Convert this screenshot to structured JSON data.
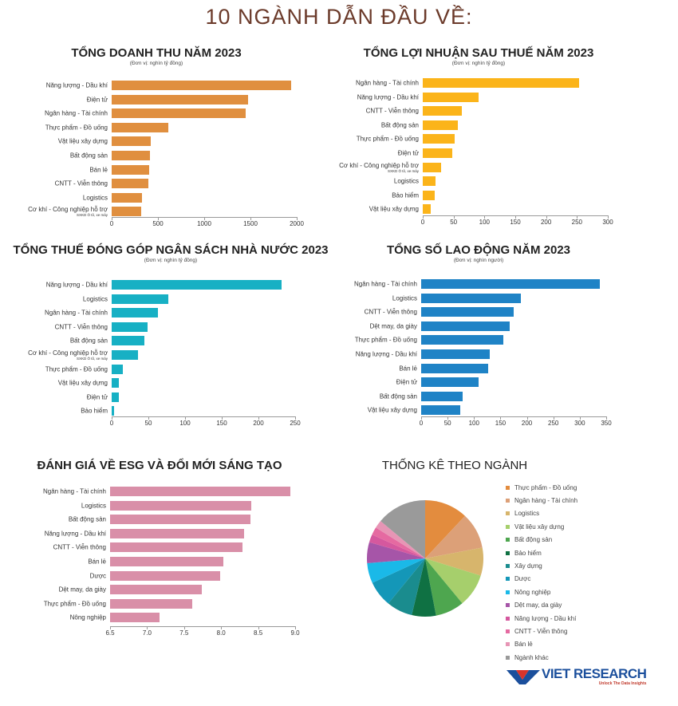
{
  "main_title": "10 NGÀNH DẪN ĐẦU VỀ:",
  "chart_data": [
    {
      "type": "bar",
      "orientation": "horizontal",
      "title": "TỔNG DOANH THU NĂM 2023",
      "unit": "(Đơn vị: nghìn tỷ đồng)",
      "color": "#e08f3f",
      "categories": [
        "Năng lượng - Dầu khí",
        "Điện tử",
        "Ngân hàng - Tài chính",
        "Thực phẩm - Đồ uống",
        "Vật liệu xây dựng",
        "Bất động sản",
        "Bán lẻ",
        "CNTT - Viễn thông",
        "Logistics",
        "Cơ khí - Công nghiệp hỗ trợ"
      ],
      "category_notes": {
        "9": "SXKD Ô tô, xe máy"
      },
      "values": [
        1940,
        1470,
        1445,
        610,
        420,
        410,
        405,
        395,
        330,
        320
      ],
      "xlim": [
        0,
        2000
      ],
      "xticks": [
        "0",
        "500",
        "1000",
        "1500",
        "2000"
      ]
    },
    {
      "type": "bar",
      "orientation": "horizontal",
      "title": "TỔNG LỢI NHUẬN SAU THUẾ NĂM 2023",
      "unit": "(Đơn vị: nghìn tỷ đồng)",
      "color": "#fbb41a",
      "categories": [
        "Ngân hàng - Tài chính",
        "Năng lượng - Dầu khí",
        "CNTT - Viễn thông",
        "Bất động sản",
        "Thực phẩm - Đồ uống",
        "Điện tử",
        "Cơ khí - Công nghiệp hỗ trợ",
        "Logistics",
        "Bảo hiểm",
        "Vật liệu xây dựng"
      ],
      "category_notes": {
        "6": "SXKD Ô tô, xe máy"
      },
      "values": [
        253,
        91,
        63,
        57,
        52,
        48,
        30,
        21,
        19,
        13
      ],
      "xlim": [
        0,
        300
      ],
      "xticks": [
        "0",
        "50",
        "100",
        "150",
        "200",
        "250",
        "300"
      ]
    },
    {
      "type": "bar",
      "orientation": "horizontal",
      "title": "TỔNG THUẾ ĐÓNG GÓP NGÂN SÁCH NHÀ NƯỚC 2023",
      "unit": "(Đơn vị: nghìn tỷ đồng)",
      "color": "#17b0c4",
      "categories": [
        "Năng lượng - Dầu khí",
        "Logistics",
        "Ngân hàng - Tài chính",
        "CNTT - Viễn thông",
        "Bất động sản",
        "Cơ khí - Công nghiệp hỗ trợ",
        "Thực phẩm - Đồ uống",
        "Vật liệu xây dựng",
        "Điện tử",
        "Bảo hiểm"
      ],
      "category_notes": {
        "5": "SXKD Ô tô, xe máy"
      },
      "values": [
        231,
        77,
        63,
        49,
        45,
        36,
        15,
        10,
        10,
        3
      ],
      "xlim": [
        0,
        250
      ],
      "xticks": [
        "0",
        "50",
        "100",
        "150",
        "200",
        "250"
      ]
    },
    {
      "type": "bar",
      "orientation": "horizontal",
      "title": "TỔNG SỐ LAO ĐỘNG NĂM 2023",
      "unit": "(Đơn vị: nghìn người)",
      "color": "#1f83c6",
      "categories": [
        "Ngân hàng - Tài chính",
        "Logistics",
        "CNTT - Viễn thông",
        "Dệt may, da giày",
        "Thực phẩm - Đồ uống",
        "Năng lượng - Dầu khí",
        "Bán lẻ",
        "Điện tử",
        "Bất động sản",
        "Vật liệu xây dựng"
      ],
      "category_notes": {},
      "values": [
        338,
        188,
        175,
        167,
        156,
        130,
        126,
        108,
        79,
        74
      ],
      "xlim": [
        0,
        350
      ],
      "xticks": [
        "0",
        "50",
        "100",
        "150",
        "200",
        "250",
        "300",
        "350"
      ]
    },
    {
      "type": "bar",
      "orientation": "horizontal",
      "title": "ĐÁNH GIÁ VỀ ESG VÀ ĐỔI MỚI SÁNG TẠO",
      "unit": "",
      "color": "#d98fa8",
      "categories": [
        "Ngân hàng - Tài chính",
        "Logistics",
        "Bất động sản",
        "Năng lượng - Dầu khí",
        "CNTT - Viễn thông",
        "Bán lẻ",
        "Dược",
        "Dệt may, da giày",
        "Thực phẩm - Đồ uống",
        "Nông nghiệp"
      ],
      "category_notes": {},
      "values": [
        8.93,
        8.41,
        8.4,
        8.31,
        8.29,
        8.03,
        7.99,
        7.74,
        7.61,
        7.17
      ],
      "xlim": [
        6.5,
        9.0
      ],
      "xticks": [
        "6.5",
        "7.0",
        "7.5",
        "8.0",
        "8.5",
        "9.0"
      ]
    },
    {
      "type": "pie",
      "title": "THỐNG KÊ THEO NGÀNH",
      "labels": [
        "Thực phẩm - Đồ uống",
        "Ngân hàng - Tài chính",
        "Logistics",
        "Vật liệu xây dựng",
        "Bất động sản",
        "Bảo hiểm",
        "Xây dựng",
        "Dược",
        "Nông nghiệp",
        "Dệt may, da giày",
        "Năng lượng - Dầu khí",
        "CNTT - Viễn thông",
        "Bán lẻ",
        "Ngành khác"
      ],
      "values": [
        12.0,
        10.0,
        7.8,
        9.2,
        8.0,
        6.7,
        7.2,
        7.2,
        5.6,
        5.8,
        2.2,
        2.2,
        2.2,
        13.9
      ],
      "colors": [
        "#e38c3e",
        "#dca078",
        "#d7b56c",
        "#a6cf6c",
        "#4ea64f",
        "#0f7143",
        "#1a8c8e",
        "#1497b8",
        "#1ab9e8",
        "#a655a8",
        "#d5589e",
        "#e56aa1",
        "#e795b5",
        "#9a9a9a"
      ],
      "legend": "right"
    }
  ],
  "logo": {
    "name": "VIET RESEARCH",
    "tagline": "Unlock The Data Insights"
  }
}
